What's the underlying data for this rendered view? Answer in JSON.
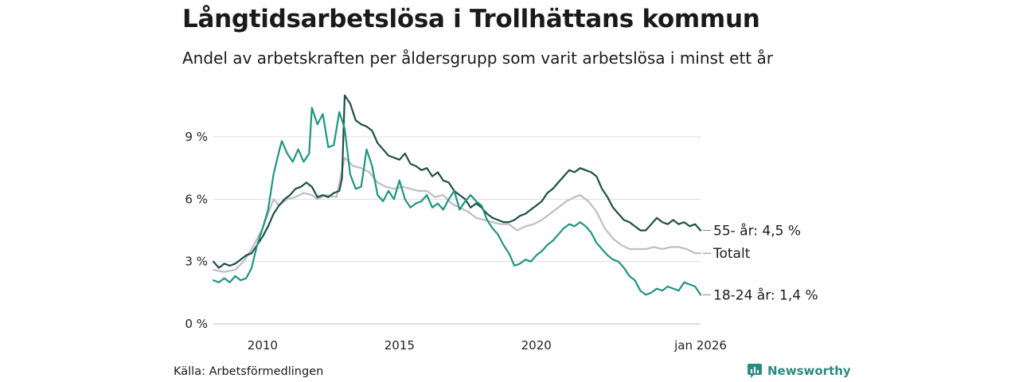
{
  "title": "Långtidsarbetslösa i Trollhättans kommun",
  "subtitle": "Andel av arbetskraften per åldersgrupp som varit arbetslösa i minst ett år",
  "source": "Källa: Arbetsförmedlingen",
  "brand": "Newsworthy",
  "brand_icon": "newsworthy-logo-icon",
  "chart_data": {
    "type": "line",
    "x_range": [
      2008.2,
      2026.0
    ],
    "ylim": [
      0,
      11.2
    ],
    "yticks": [
      {
        "value": 0,
        "label": "0 %"
      },
      {
        "value": 3,
        "label": "3 %"
      },
      {
        "value": 6,
        "label": "6 %"
      },
      {
        "value": 9,
        "label": "9 %"
      }
    ],
    "xticks": [
      {
        "value": 2010,
        "label": "2010"
      },
      {
        "value": 2015,
        "label": "2015"
      },
      {
        "value": 2020,
        "label": "2020"
      },
      {
        "value": 2026,
        "label": "jan 2026"
      }
    ],
    "grid": true,
    "series": [
      {
        "name": "Totalt",
        "label": "Totalt",
        "color": "#bfbcc6",
        "points": [
          [
            2008.2,
            2.6
          ],
          [
            2008.6,
            2.5
          ],
          [
            2009.0,
            2.6
          ],
          [
            2009.3,
            3.0
          ],
          [
            2009.6,
            3.6
          ],
          [
            2010.0,
            4.6
          ],
          [
            2010.2,
            5.3
          ],
          [
            2010.4,
            6.0
          ],
          [
            2010.6,
            5.7
          ],
          [
            2010.9,
            6.0
          ],
          [
            2011.2,
            6.1
          ],
          [
            2011.5,
            6.3
          ],
          [
            2011.8,
            6.2
          ],
          [
            2012.0,
            6.0
          ],
          [
            2012.3,
            6.2
          ],
          [
            2012.7,
            6.1
          ],
          [
            2013.0,
            8.0
          ],
          [
            2013.3,
            7.6
          ],
          [
            2013.6,
            7.5
          ],
          [
            2013.9,
            7.3
          ],
          [
            2014.2,
            6.8
          ],
          [
            2014.5,
            6.6
          ],
          [
            2014.8,
            6.5
          ],
          [
            2015.1,
            6.6
          ],
          [
            2015.4,
            6.5
          ],
          [
            2015.7,
            6.4
          ],
          [
            2016.0,
            6.4
          ],
          [
            2016.3,
            6.1
          ],
          [
            2016.6,
            6.2
          ],
          [
            2016.9,
            5.8
          ],
          [
            2017.2,
            5.6
          ],
          [
            2017.5,
            5.4
          ],
          [
            2017.8,
            5.1
          ],
          [
            2018.1,
            5.0
          ],
          [
            2018.4,
            4.9
          ],
          [
            2018.7,
            4.8
          ],
          [
            2019.0,
            4.8
          ],
          [
            2019.3,
            4.5
          ],
          [
            2019.6,
            4.7
          ],
          [
            2019.9,
            4.8
          ],
          [
            2020.2,
            5.0
          ],
          [
            2020.5,
            5.3
          ],
          [
            2020.8,
            5.6
          ],
          [
            2021.1,
            5.9
          ],
          [
            2021.4,
            6.1
          ],
          [
            2021.6,
            6.2
          ],
          [
            2021.9,
            5.9
          ],
          [
            2022.2,
            5.4
          ],
          [
            2022.5,
            4.6
          ],
          [
            2022.8,
            4.1
          ],
          [
            2023.1,
            3.8
          ],
          [
            2023.4,
            3.6
          ],
          [
            2023.7,
            3.6
          ],
          [
            2024.0,
            3.6
          ],
          [
            2024.3,
            3.7
          ],
          [
            2024.6,
            3.6
          ],
          [
            2024.9,
            3.7
          ],
          [
            2025.2,
            3.7
          ],
          [
            2025.5,
            3.6
          ],
          [
            2025.8,
            3.4
          ],
          [
            2026.0,
            3.4
          ]
        ]
      },
      {
        "name": "55- år",
        "label": "55- år: 4,5 %",
        "color": "#1f4e46",
        "points": [
          [
            2008.2,
            3.0
          ],
          [
            2008.4,
            2.7
          ],
          [
            2008.6,
            2.9
          ],
          [
            2008.8,
            2.8
          ],
          [
            2009.0,
            2.9
          ],
          [
            2009.2,
            3.1
          ],
          [
            2009.4,
            3.3
          ],
          [
            2009.6,
            3.4
          ],
          [
            2009.8,
            3.8
          ],
          [
            2010.0,
            4.2
          ],
          [
            2010.2,
            4.7
          ],
          [
            2010.4,
            5.3
          ],
          [
            2010.6,
            5.7
          ],
          [
            2010.8,
            6.0
          ],
          [
            2011.0,
            6.2
          ],
          [
            2011.2,
            6.5
          ],
          [
            2011.4,
            6.6
          ],
          [
            2011.6,
            6.8
          ],
          [
            2011.8,
            6.6
          ],
          [
            2012.0,
            6.1
          ],
          [
            2012.2,
            6.2
          ],
          [
            2012.4,
            6.1
          ],
          [
            2012.6,
            6.3
          ],
          [
            2012.8,
            6.4
          ],
          [
            2012.9,
            7.0
          ],
          [
            2013.0,
            11.0
          ],
          [
            2013.2,
            10.6
          ],
          [
            2013.4,
            9.8
          ],
          [
            2013.6,
            9.6
          ],
          [
            2013.8,
            9.5
          ],
          [
            2014.0,
            9.3
          ],
          [
            2014.2,
            8.7
          ],
          [
            2014.4,
            8.4
          ],
          [
            2014.6,
            8.1
          ],
          [
            2014.8,
            8.0
          ],
          [
            2015.0,
            7.9
          ],
          [
            2015.2,
            8.2
          ],
          [
            2015.4,
            7.7
          ],
          [
            2015.6,
            7.6
          ],
          [
            2015.8,
            7.4
          ],
          [
            2016.0,
            7.5
          ],
          [
            2016.2,
            7.1
          ],
          [
            2016.4,
            7.3
          ],
          [
            2016.6,
            6.9
          ],
          [
            2016.8,
            6.8
          ],
          [
            2017.0,
            6.4
          ],
          [
            2017.2,
            6.2
          ],
          [
            2017.4,
            6.0
          ],
          [
            2017.6,
            5.6
          ],
          [
            2017.8,
            5.8
          ],
          [
            2018.0,
            5.6
          ],
          [
            2018.2,
            5.3
          ],
          [
            2018.4,
            5.1
          ],
          [
            2018.6,
            5.0
          ],
          [
            2018.8,
            4.9
          ],
          [
            2019.0,
            4.9
          ],
          [
            2019.2,
            5.0
          ],
          [
            2019.4,
            5.2
          ],
          [
            2019.6,
            5.3
          ],
          [
            2019.8,
            5.5
          ],
          [
            2020.0,
            5.7
          ],
          [
            2020.2,
            5.9
          ],
          [
            2020.4,
            6.3
          ],
          [
            2020.6,
            6.5
          ],
          [
            2020.8,
            6.8
          ],
          [
            2021.0,
            7.1
          ],
          [
            2021.2,
            7.4
          ],
          [
            2021.4,
            7.3
          ],
          [
            2021.6,
            7.5
          ],
          [
            2021.8,
            7.4
          ],
          [
            2022.0,
            7.3
          ],
          [
            2022.2,
            7.1
          ],
          [
            2022.4,
            6.5
          ],
          [
            2022.6,
            6.1
          ],
          [
            2022.8,
            5.6
          ],
          [
            2023.0,
            5.3
          ],
          [
            2023.2,
            5.0
          ],
          [
            2023.4,
            4.9
          ],
          [
            2023.6,
            4.7
          ],
          [
            2023.8,
            4.5
          ],
          [
            2024.0,
            4.5
          ],
          [
            2024.2,
            4.8
          ],
          [
            2024.4,
            5.1
          ],
          [
            2024.6,
            4.9
          ],
          [
            2024.8,
            4.8
          ],
          [
            2025.0,
            5.0
          ],
          [
            2025.2,
            4.8
          ],
          [
            2025.4,
            4.9
          ],
          [
            2025.6,
            4.7
          ],
          [
            2025.8,
            4.8
          ],
          [
            2026.0,
            4.5
          ]
        ]
      },
      {
        "name": "18-24 år",
        "label": "18-24 år: 1,4 %",
        "color": "#1f9481",
        "points": [
          [
            2008.2,
            2.1
          ],
          [
            2008.4,
            2.0
          ],
          [
            2008.6,
            2.2
          ],
          [
            2008.8,
            2.0
          ],
          [
            2009.0,
            2.3
          ],
          [
            2009.2,
            2.1
          ],
          [
            2009.4,
            2.2
          ],
          [
            2009.6,
            2.7
          ],
          [
            2009.8,
            3.8
          ],
          [
            2010.0,
            4.6
          ],
          [
            2010.2,
            5.5
          ],
          [
            2010.4,
            7.2
          ],
          [
            2010.6,
            8.3
          ],
          [
            2010.7,
            8.8
          ],
          [
            2010.9,
            8.2
          ],
          [
            2011.1,
            7.8
          ],
          [
            2011.3,
            8.4
          ],
          [
            2011.5,
            7.8
          ],
          [
            2011.7,
            8.2
          ],
          [
            2011.8,
            10.4
          ],
          [
            2012.0,
            9.6
          ],
          [
            2012.2,
            10.1
          ],
          [
            2012.4,
            8.5
          ],
          [
            2012.6,
            8.6
          ],
          [
            2012.8,
            10.2
          ],
          [
            2013.0,
            9.4
          ],
          [
            2013.2,
            7.2
          ],
          [
            2013.4,
            6.5
          ],
          [
            2013.6,
            6.6
          ],
          [
            2013.8,
            8.4
          ],
          [
            2014.0,
            7.6
          ],
          [
            2014.2,
            6.2
          ],
          [
            2014.4,
            5.9
          ],
          [
            2014.6,
            6.4
          ],
          [
            2014.8,
            6.0
          ],
          [
            2015.0,
            6.9
          ],
          [
            2015.2,
            6.0
          ],
          [
            2015.4,
            5.6
          ],
          [
            2015.6,
            5.8
          ],
          [
            2015.8,
            5.9
          ],
          [
            2016.0,
            6.2
          ],
          [
            2016.2,
            5.6
          ],
          [
            2016.4,
            5.8
          ],
          [
            2016.6,
            5.5
          ],
          [
            2016.8,
            6.0
          ],
          [
            2017.0,
            6.4
          ],
          [
            2017.2,
            5.5
          ],
          [
            2017.4,
            5.9
          ],
          [
            2017.6,
            6.2
          ],
          [
            2017.8,
            5.9
          ],
          [
            2018.0,
            5.7
          ],
          [
            2018.2,
            5.0
          ],
          [
            2018.4,
            4.6
          ],
          [
            2018.6,
            4.3
          ],
          [
            2018.8,
            3.8
          ],
          [
            2019.0,
            3.4
          ],
          [
            2019.2,
            2.8
          ],
          [
            2019.4,
            2.9
          ],
          [
            2019.6,
            3.1
          ],
          [
            2019.8,
            3.0
          ],
          [
            2020.0,
            3.3
          ],
          [
            2020.2,
            3.5
          ],
          [
            2020.4,
            3.8
          ],
          [
            2020.6,
            4.0
          ],
          [
            2020.8,
            4.3
          ],
          [
            2021.0,
            4.6
          ],
          [
            2021.2,
            4.8
          ],
          [
            2021.4,
            4.7
          ],
          [
            2021.6,
            4.9
          ],
          [
            2021.8,
            4.7
          ],
          [
            2022.0,
            4.4
          ],
          [
            2022.2,
            3.9
          ],
          [
            2022.4,
            3.6
          ],
          [
            2022.6,
            3.3
          ],
          [
            2022.8,
            3.1
          ],
          [
            2023.0,
            3.0
          ],
          [
            2023.2,
            2.7
          ],
          [
            2023.4,
            2.3
          ],
          [
            2023.6,
            2.1
          ],
          [
            2023.8,
            1.6
          ],
          [
            2024.0,
            1.4
          ],
          [
            2024.2,
            1.5
          ],
          [
            2024.4,
            1.7
          ],
          [
            2024.6,
            1.6
          ],
          [
            2024.8,
            1.8
          ],
          [
            2025.0,
            1.7
          ],
          [
            2025.2,
            1.6
          ],
          [
            2025.4,
            2.0
          ],
          [
            2025.6,
            1.9
          ],
          [
            2025.8,
            1.8
          ],
          [
            2026.0,
            1.4
          ]
        ]
      }
    ]
  }
}
